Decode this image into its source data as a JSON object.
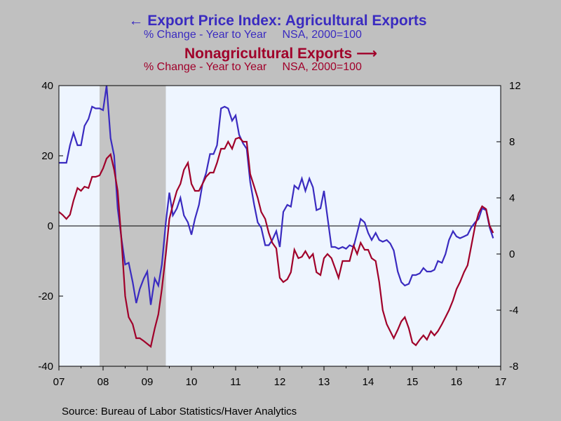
{
  "header": {
    "left_title": "Export Price Index: Agricultural Exports",
    "left_subtitle": "% Change - Year to Year     NSA, 2000=100",
    "right_title": "Nonagricultural Exports",
    "right_subtitle": "% Change - Year to Year     NSA, 2000=100"
  },
  "source": "Source:  Bureau of Labor Statistics/Haver Analytics",
  "colors": {
    "agricultural": "#3a2bc0",
    "nonagricultural": "#a0002a",
    "plot_bg": "#eef5ff",
    "recession": "#c4c4c4"
  },
  "chart_data": {
    "type": "line",
    "x_ticks": [
      "07",
      "08",
      "09",
      "10",
      "11",
      "12",
      "13",
      "14",
      "15",
      "16",
      "17"
    ],
    "x_range": [
      2007.0,
      2017.0
    ],
    "left_axis": {
      "ticks": [
        -40,
        -20,
        0,
        20,
        40
      ],
      "range": [
        -40,
        40
      ]
    },
    "right_axis": {
      "ticks": [
        -8,
        -4,
        0,
        4,
        8,
        12
      ],
      "range": [
        -8,
        12
      ]
    },
    "recession": [
      2007.92,
      2009.42
    ],
    "reference_line": 0,
    "series": [
      {
        "name": "Export Price Index: Agricultural Exports",
        "axis": "left",
        "color": "#3a2bc0",
        "data": [
          [
            2007.0,
            18
          ],
          [
            2007.17,
            18
          ],
          [
            2007.25,
            23
          ],
          [
            2007.33,
            26.5
          ],
          [
            2007.42,
            23
          ],
          [
            2007.5,
            23
          ],
          [
            2007.58,
            28.5
          ],
          [
            2007.67,
            30.5
          ],
          [
            2007.75,
            34
          ],
          [
            2007.83,
            33.5
          ],
          [
            2007.92,
            33.5
          ],
          [
            2008.0,
            33
          ],
          [
            2008.08,
            40
          ],
          [
            2008.17,
            25
          ],
          [
            2008.25,
            20
          ],
          [
            2008.33,
            5
          ],
          [
            2008.42,
            -4
          ],
          [
            2008.5,
            -11
          ],
          [
            2008.58,
            -10.5
          ],
          [
            2008.67,
            -16
          ],
          [
            2008.75,
            -22
          ],
          [
            2008.83,
            -18
          ],
          [
            2008.92,
            -15
          ],
          [
            2009.0,
            -13
          ],
          [
            2009.08,
            -22.5
          ],
          [
            2009.17,
            -15
          ],
          [
            2009.25,
            -17
          ],
          [
            2009.33,
            -11
          ],
          [
            2009.42,
            1
          ],
          [
            2009.5,
            9.5
          ],
          [
            2009.58,
            3
          ],
          [
            2009.67,
            5
          ],
          [
            2009.75,
            8
          ],
          [
            2009.83,
            3
          ],
          [
            2009.92,
            1
          ],
          [
            2010.0,
            -2.5
          ],
          [
            2010.08,
            2
          ],
          [
            2010.17,
            6
          ],
          [
            2010.25,
            12
          ],
          [
            2010.33,
            15
          ],
          [
            2010.42,
            20.5
          ],
          [
            2010.5,
            20.5
          ],
          [
            2010.58,
            23
          ],
          [
            2010.67,
            33.5
          ],
          [
            2010.75,
            34
          ],
          [
            2010.83,
            33.5
          ],
          [
            2010.92,
            30
          ],
          [
            2011.0,
            31.5
          ],
          [
            2011.08,
            26
          ],
          [
            2011.17,
            23.5
          ],
          [
            2011.25,
            22
          ],
          [
            2011.33,
            12.5
          ],
          [
            2011.42,
            6
          ],
          [
            2011.5,
            1
          ],
          [
            2011.58,
            -0.5
          ],
          [
            2011.67,
            -5.5
          ],
          [
            2011.75,
            -5.5
          ],
          [
            2011.83,
            -4
          ],
          [
            2011.92,
            -1.5
          ],
          [
            2012.0,
            -6
          ],
          [
            2012.08,
            4
          ],
          [
            2012.17,
            6
          ],
          [
            2012.25,
            5.5
          ],
          [
            2012.33,
            11.5
          ],
          [
            2012.42,
            10.5
          ],
          [
            2012.5,
            13.5
          ],
          [
            2012.58,
            10
          ],
          [
            2012.67,
            13.5
          ],
          [
            2012.75,
            11
          ],
          [
            2012.83,
            4.5
          ],
          [
            2012.92,
            5
          ],
          [
            2013.0,
            10
          ],
          [
            2013.08,
            2.5
          ],
          [
            2013.17,
            -6
          ],
          [
            2013.25,
            -6
          ],
          [
            2013.33,
            -6.5
          ],
          [
            2013.42,
            -6
          ],
          [
            2013.5,
            -6.5
          ],
          [
            2013.58,
            -5.5
          ],
          [
            2013.67,
            -6
          ],
          [
            2013.75,
            -2
          ],
          [
            2013.83,
            2
          ],
          [
            2013.92,
            1
          ],
          [
            2014.0,
            -2
          ],
          [
            2014.08,
            -4
          ],
          [
            2014.17,
            -2
          ],
          [
            2014.25,
            -4
          ],
          [
            2014.33,
            -4.5
          ],
          [
            2014.42,
            -4
          ],
          [
            2014.5,
            -5
          ],
          [
            2014.58,
            -7
          ],
          [
            2014.67,
            -13
          ],
          [
            2014.75,
            -16
          ],
          [
            2014.83,
            -17
          ],
          [
            2014.92,
            -16.5
          ],
          [
            2015.0,
            -14
          ],
          [
            2015.08,
            -14
          ],
          [
            2015.17,
            -13.5
          ],
          [
            2015.25,
            -12
          ],
          [
            2015.33,
            -13
          ],
          [
            2015.42,
            -13
          ],
          [
            2015.5,
            -12.5
          ],
          [
            2015.58,
            -10
          ],
          [
            2015.67,
            -10.5
          ],
          [
            2015.75,
            -8
          ],
          [
            2015.83,
            -4
          ],
          [
            2015.92,
            -1.5
          ],
          [
            2016.0,
            -3
          ],
          [
            2016.08,
            -3.5
          ],
          [
            2016.17,
            -3
          ],
          [
            2016.25,
            -2.5
          ],
          [
            2016.33,
            -0.5
          ],
          [
            2016.42,
            1
          ],
          [
            2016.5,
            2
          ],
          [
            2016.58,
            5
          ],
          [
            2016.67,
            4.5
          ],
          [
            2016.75,
            -0.5
          ],
          [
            2016.83,
            -3.5
          ]
        ]
      },
      {
        "name": "Nonagricultural Exports",
        "axis": "right",
        "color": "#a0002a",
        "data": [
          [
            2007.0,
            3
          ],
          [
            2007.08,
            2.8
          ],
          [
            2007.17,
            2.5
          ],
          [
            2007.25,
            2.8
          ],
          [
            2007.33,
            3.8
          ],
          [
            2007.42,
            4.7
          ],
          [
            2007.5,
            4.5
          ],
          [
            2007.58,
            4.8
          ],
          [
            2007.67,
            4.7
          ],
          [
            2007.75,
            5.5
          ],
          [
            2007.83,
            5.5
          ],
          [
            2007.92,
            5.6
          ],
          [
            2008.0,
            6.1
          ],
          [
            2008.08,
            6.8
          ],
          [
            2008.17,
            7.1
          ],
          [
            2008.25,
            6
          ],
          [
            2008.33,
            4.5
          ],
          [
            2008.42,
            0.8
          ],
          [
            2008.5,
            -3
          ],
          [
            2008.58,
            -4.5
          ],
          [
            2008.67,
            -5
          ],
          [
            2008.75,
            -6
          ],
          [
            2008.83,
            -6
          ],
          [
            2008.92,
            -6.2
          ],
          [
            2009.0,
            -6.4
          ],
          [
            2009.08,
            -6.6
          ],
          [
            2009.17,
            -5.3
          ],
          [
            2009.25,
            -4.3
          ],
          [
            2009.33,
            -2.5
          ],
          [
            2009.42,
            0
          ],
          [
            2009.5,
            2.5
          ],
          [
            2009.58,
            3.5
          ],
          [
            2009.67,
            4.5
          ],
          [
            2009.75,
            5
          ],
          [
            2009.83,
            6
          ],
          [
            2009.92,
            6.5
          ],
          [
            2010.0,
            5
          ],
          [
            2010.08,
            4.5
          ],
          [
            2010.17,
            4.5
          ],
          [
            2010.25,
            5
          ],
          [
            2010.33,
            5.5
          ],
          [
            2010.42,
            5.8
          ],
          [
            2010.5,
            5.8
          ],
          [
            2010.58,
            6.5
          ],
          [
            2010.67,
            7.5
          ],
          [
            2010.75,
            7.5
          ],
          [
            2010.83,
            8
          ],
          [
            2010.92,
            7.5
          ],
          [
            2011.0,
            8.2
          ],
          [
            2011.08,
            8.3
          ],
          [
            2011.17,
            8
          ],
          [
            2011.25,
            8
          ],
          [
            2011.33,
            5.7
          ],
          [
            2011.42,
            4.8
          ],
          [
            2011.5,
            4
          ],
          [
            2011.58,
            3
          ],
          [
            2011.67,
            2.5
          ],
          [
            2011.75,
            1.5
          ],
          [
            2011.83,
            0.8
          ],
          [
            2011.92,
            0.4
          ],
          [
            2012.0,
            -1.7
          ],
          [
            2012.08,
            -2
          ],
          [
            2012.17,
            -1.8
          ],
          [
            2012.25,
            -1.3
          ],
          [
            2012.33,
            0.3
          ],
          [
            2012.42,
            -0.3
          ],
          [
            2012.5,
            -0.2
          ],
          [
            2012.58,
            0.2
          ],
          [
            2012.67,
            -0.3
          ],
          [
            2012.75,
            0
          ],
          [
            2012.83,
            -1.3
          ],
          [
            2012.92,
            -1.5
          ],
          [
            2013.0,
            -0.3
          ],
          [
            2013.08,
            0
          ],
          [
            2013.17,
            -0.3
          ],
          [
            2013.25,
            -1
          ],
          [
            2013.33,
            -1.7
          ],
          [
            2013.42,
            -0.5
          ],
          [
            2013.5,
            -0.5
          ],
          [
            2013.58,
            -0.5
          ],
          [
            2013.67,
            0.6
          ],
          [
            2013.75,
            0
          ],
          [
            2013.83,
            0.8
          ],
          [
            2013.92,
            0.3
          ],
          [
            2014.0,
            0.3
          ],
          [
            2014.08,
            -0.3
          ],
          [
            2014.17,
            -0.5
          ],
          [
            2014.25,
            -2
          ],
          [
            2014.33,
            -4
          ],
          [
            2014.42,
            -5
          ],
          [
            2014.5,
            -5.5
          ],
          [
            2014.58,
            -6
          ],
          [
            2014.67,
            -5.4
          ],
          [
            2014.75,
            -4.8
          ],
          [
            2014.83,
            -4.5
          ],
          [
            2014.92,
            -5.3
          ],
          [
            2015.0,
            -6.3
          ],
          [
            2015.08,
            -6.5
          ],
          [
            2015.17,
            -6.1
          ],
          [
            2015.25,
            -5.8
          ],
          [
            2015.33,
            -6.1
          ],
          [
            2015.42,
            -5.5
          ],
          [
            2015.5,
            -5.8
          ],
          [
            2015.58,
            -5.5
          ],
          [
            2015.67,
            -5
          ],
          [
            2015.75,
            -4.5
          ],
          [
            2015.83,
            -4
          ],
          [
            2015.92,
            -3.3
          ],
          [
            2016.0,
            -2.5
          ],
          [
            2016.08,
            -2
          ],
          [
            2016.17,
            -1.3
          ],
          [
            2016.25,
            -0.8
          ],
          [
            2016.33,
            0.5
          ],
          [
            2016.42,
            2
          ],
          [
            2016.5,
            2.9
          ],
          [
            2016.58,
            3.4
          ],
          [
            2016.67,
            3.2
          ],
          [
            2016.75,
            2
          ],
          [
            2016.83,
            1.5
          ]
        ]
      }
    ]
  }
}
